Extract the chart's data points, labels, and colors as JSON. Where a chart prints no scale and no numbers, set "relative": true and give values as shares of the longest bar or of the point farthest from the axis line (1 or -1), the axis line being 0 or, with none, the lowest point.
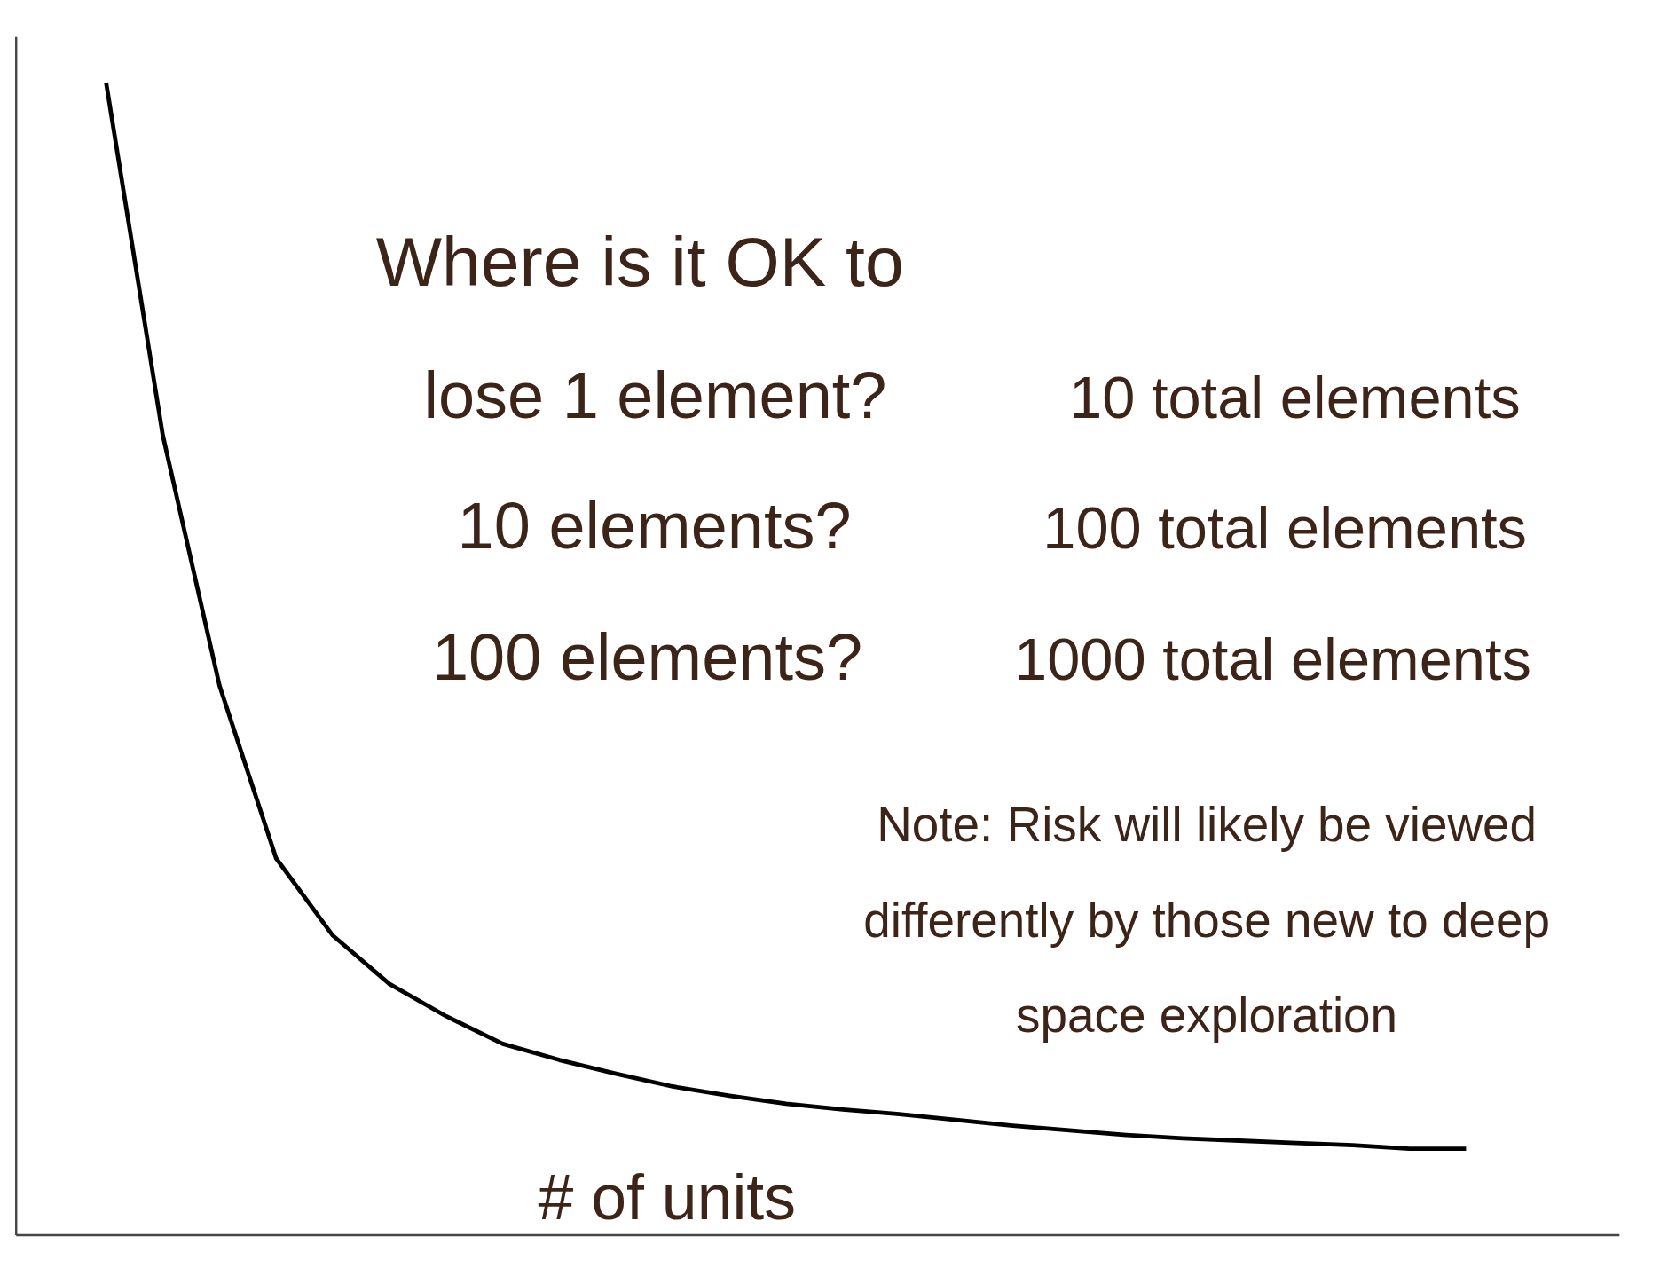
{
  "chart_data": {
    "type": "line",
    "relative": true,
    "xlabel": "# of units",
    "categories": [
      null,
      null,
      null,
      null,
      null,
      null,
      null,
      null,
      null,
      null,
      null,
      null,
      null,
      null,
      null,
      null,
      null,
      null,
      null,
      null,
      null,
      null,
      null,
      null,
      null
    ],
    "series": [
      {
        "color": "#000000",
        "values": [
          1.0,
          0.694,
          0.477,
          0.327,
          0.26,
          0.218,
          0.19,
          0.166,
          0.152,
          0.14,
          0.129,
          0.121,
          0.114,
          0.109,
          0.105,
          0.1,
          0.095,
          0.091,
          0.087,
          0.084,
          0.082,
          0.08,
          0.078,
          0.075,
          0.075
        ]
      }
    ],
    "marker": "none",
    "line_style": "solid",
    "annotations": [
      "Where is it OK to",
      "lose 1 element?",
      "10 total elements",
      "10 elements?",
      "100 total elements",
      "100 elements?",
      "1000 total elements",
      "Note: Risk will likely be viewed differently by those new to deep space exploration"
    ]
  }
}
